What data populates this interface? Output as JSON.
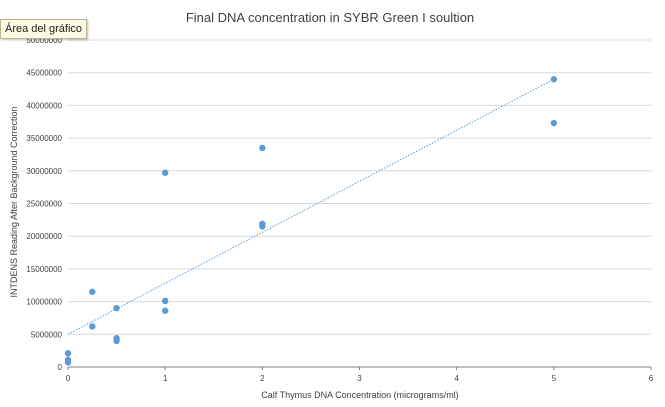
{
  "tooltip": {
    "label": "Área del gráfico"
  },
  "colors": {
    "point": "#5b9bd5",
    "trendline": "#5b9bd5",
    "grid": "#d9d9d9",
    "axis": "#808080",
    "text": "#404040"
  },
  "chart_data": {
    "type": "scatter",
    "title": "Final DNA concentration in SYBR Green I soultion",
    "xlabel": "Calf Thymus DNA Concentration (micrograms/ml)",
    "ylabel": "INTDENS Reading After Background Correction",
    "xlim": [
      0,
      6
    ],
    "ylim": [
      0,
      50000000
    ],
    "xticks": [
      0,
      1,
      2,
      3,
      4,
      5,
      6
    ],
    "yticks": [
      0,
      5000000,
      10000000,
      15000000,
      20000000,
      25000000,
      30000000,
      35000000,
      40000000,
      45000000,
      50000000
    ],
    "grid": "horizontal",
    "trendline": {
      "type": "linear",
      "x": [
        0,
        5
      ],
      "y": [
        5000000,
        44000000
      ]
    },
    "points": [
      {
        "x": 0,
        "y": 2100000
      },
      {
        "x": 0,
        "y": 1100000
      },
      {
        "x": 0,
        "y": 700000
      },
      {
        "x": 0.25,
        "y": 11500000
      },
      {
        "x": 0.25,
        "y": 6200000
      },
      {
        "x": 0.5,
        "y": 9000000
      },
      {
        "x": 0.5,
        "y": 4400000
      },
      {
        "x": 0.5,
        "y": 4000000
      },
      {
        "x": 1,
        "y": 29700000
      },
      {
        "x": 1,
        "y": 10100000
      },
      {
        "x": 1,
        "y": 8600000
      },
      {
        "x": 2,
        "y": 33500000
      },
      {
        "x": 2,
        "y": 21900000
      },
      {
        "x": 2,
        "y": 21500000
      },
      {
        "x": 5,
        "y": 44000000
      },
      {
        "x": 5,
        "y": 37300000
      }
    ]
  }
}
